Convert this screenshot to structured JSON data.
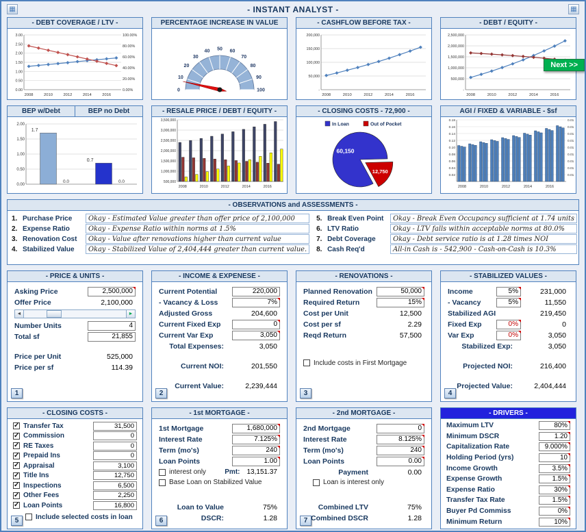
{
  "title": "- INSTANT ANALYST -",
  "next_button": "Next >>",
  "icons": {
    "sheet_left": "▦",
    "sheet_right": "▦",
    "slider_left": "◄",
    "slider_right": "►"
  },
  "charts": {
    "debt_coverage": {
      "title": "- DEBT COVERAGE / LTV -",
      "type": "line",
      "x": [
        2008,
        2009,
        2010,
        2011,
        2012,
        2013,
        2014,
        2015,
        2016,
        2017
      ],
      "x_label_every": 2,
      "left_axis": {
        "min": 0,
        "max": 3,
        "step": 0.5,
        "format": "2dp"
      },
      "right_axis": {
        "min": 0,
        "max": 100,
        "step": 20,
        "format": "pct2"
      },
      "series": [
        {
          "name": "Debt Coverage",
          "axis": "left",
          "color": "#4f81bd",
          "values": [
            1.28,
            1.33,
            1.38,
            1.43,
            1.48,
            1.54,
            1.59,
            1.64,
            1.69,
            1.74
          ]
        },
        {
          "name": "LTV",
          "axis": "right",
          "color": "#c0504d",
          "values": [
            80,
            76,
            72,
            68,
            64,
            60,
            56,
            52,
            48,
            44
          ]
        }
      ]
    },
    "value_gauge": {
      "title": "PERCENTAGE INCREASE IN VALUE",
      "type": "gauge",
      "min": 0,
      "max": 100,
      "tick_step": 10,
      "value": 7
    },
    "cashflow": {
      "title": "- CASHFLOW BEFORE TAX -",
      "type": "line",
      "x": [
        2008,
        2009,
        2010,
        2011,
        2012,
        2013,
        2014,
        2015,
        2016,
        2017
      ],
      "x_label_every": 2,
      "left_axis": {
        "min": 0,
        "max": 200000,
        "step": 50000,
        "format": "comma"
      },
      "series": [
        {
          "name": "Cashflow Before Tax",
          "axis": "left",
          "color": "#4f81bd",
          "values": [
            52000,
            61000,
            71000,
            81000,
            92000,
            103000,
            115000,
            128000,
            141000,
            155000
          ]
        }
      ]
    },
    "debt_equity": {
      "title": "- DEBT / EQUITY -",
      "type": "line",
      "x": [
        2008,
        2009,
        2010,
        2011,
        2012,
        2013,
        2014,
        2015,
        2016,
        2017
      ],
      "x_label_every": 2,
      "left_axis": {
        "min": 0,
        "max": 2500000,
        "step": 500000,
        "format": "comma"
      },
      "series": [
        {
          "name": "Equity",
          "axis": "left",
          "color": "#4f81bd",
          "values": [
            560000,
            700000,
            850000,
            1010000,
            1180000,
            1360000,
            1560000,
            1770000,
            1990000,
            2230000
          ]
        },
        {
          "name": "Debt",
          "axis": "left",
          "color": "#943634",
          "values": [
            1680000,
            1652000,
            1622000,
            1590000,
            1556000,
            1519000,
            1479000,
            1436000,
            1390000,
            1341000
          ]
        }
      ]
    },
    "bep": {
      "type": "bar",
      "titles": [
        "BEP w/Debt",
        "BEP no Debt"
      ],
      "left_axis": {
        "min": 0,
        "max": 2,
        "step": 0.5,
        "format": "2dp"
      },
      "bars": [
        {
          "label": "BEP w/Debt",
          "value": 1.7,
          "zero_label": "0.0",
          "color": "#8caed6"
        },
        {
          "label": "BEP no Debt",
          "value": 0.7,
          "zero_label": "0.0",
          "color": "#2433cc"
        }
      ],
      "value_labels": [
        "1.7",
        "0.7"
      ]
    },
    "resale": {
      "title": "- RESALE PRICE / DEBT / EQUITY -",
      "type": "bar-clustered",
      "x": [
        2008,
        2009,
        2010,
        2011,
        2012,
        2013,
        2014,
        2015,
        2016,
        2017
      ],
      "x_label_every": 2,
      "left_axis": {
        "min": 500000,
        "max": 3500000,
        "step": 500000,
        "format": "comma"
      },
      "series": [
        {
          "name": "Resale Price",
          "color": "#3f4668",
          "values": [
            2400000,
            2496000,
            2596000,
            2700000,
            2808000,
            2920000,
            3037000,
            3158000,
            3285000,
            3416000
          ]
        },
        {
          "name": "Debt",
          "color": "#943634",
          "values": [
            1680000,
            1652000,
            1622000,
            1590000,
            1556000,
            1519000,
            1479000,
            1436000,
            1390000,
            1341000
          ]
        },
        {
          "name": "Equity",
          "color": "#ffff00",
          "values": [
            720000,
            844000,
            974000,
            1110000,
            1252000,
            1401000,
            1558000,
            1722000,
            1895000,
            2075000
          ]
        }
      ]
    },
    "closing_pie": {
      "title": "- CLOSING COSTS - 72,900 -",
      "type": "pie",
      "legend": [
        "In Loan",
        "Out of Pocket"
      ],
      "slices": [
        {
          "name": "In Loan",
          "value": 60150,
          "label": "60,150",
          "color": "#3333cc"
        },
        {
          "name": "Out of Pocket",
          "value": 12750,
          "label": "12,750",
          "color": "#cc0000"
        }
      ]
    },
    "agi": {
      "title": "AGI / FIXED & VARIABLE - $sf",
      "type": "bar",
      "x": [
        2008,
        2009,
        2010,
        2011,
        2012,
        2013,
        2014,
        2015,
        2016,
        2017
      ],
      "x_label_every": 2,
      "left_axis": {
        "min": 0,
        "max": 0.18,
        "step": 0.02,
        "format": "2dp"
      },
      "right_label": "0.01",
      "color": "#4f81bd",
      "values": [
        0.105,
        0.11,
        0.116,
        0.122,
        0.128,
        0.134,
        0.141,
        0.148,
        0.155,
        0.163
      ]
    }
  },
  "observations": {
    "title": "- OBSERVATIONS and ASSESSMENTS -",
    "left": [
      {
        "num": "1.",
        "label": "Purchase Price",
        "comment": "Okay - Estimated Value greater than offer price of 2,100,000"
      },
      {
        "num": "2.",
        "label": "Expense Ratio",
        "comment": "Okay - Expense Ratio within norms at 1.5%"
      },
      {
        "num": "3.",
        "label": "Renovation Cost",
        "comment": "Okay - Value after renovations higher than current value"
      },
      {
        "num": "4.",
        "label": "Stabilized Value",
        "comment": "Okay - Stabilized Value of 2,404,444 greater than current value."
      }
    ],
    "right": [
      {
        "num": "5.",
        "label": "Break Even Point",
        "comment": "Okay - Break Even Occupancy sufficient at 1.74 units"
      },
      {
        "num": "6.",
        "label": "LTV Ratio",
        "comment": "Okay - LTV falls within acceptable norms at 80.0%"
      },
      {
        "num": "7.",
        "label": "Debt Coverage",
        "comment": "Okay - Debt service ratio is at 1.28 times NOI"
      },
      {
        "num": "8.",
        "label": "Cash Req'd",
        "comment": "All-in Cash is - 542,900 - Cash-on-Cash is 10.3%"
      }
    ]
  },
  "price_units": {
    "title": "- PRICE & UNITS -",
    "badge": "1",
    "asking_price_label": "Asking Price",
    "asking_price": "2,500,000",
    "offer_price_label": "Offer Price",
    "offer_price": "2,100,000",
    "number_units_label": "Number Units",
    "number_units": "4",
    "total_sf_label": "Total sf",
    "total_sf": "21,855",
    "price_per_unit_label": "Price per Unit",
    "price_per_unit": "525,000",
    "price_per_sf_label": "Price per sf",
    "price_per_sf": "114.39"
  },
  "income_expense": {
    "title": "- INCOME & EXPENESE -",
    "badge": "2",
    "current_potential_label": "Current Potential",
    "current_potential": "220,000",
    "vacancy_label": " - Vacancy & Loss",
    "vacancy": "7%",
    "adjusted_gross_label": "Adjusted Gross",
    "adjusted_gross": "204,600",
    "fixed_exp_label": "Current Fixed Exp",
    "fixed_exp": "0",
    "var_exp_label": "Current Var Exp",
    "var_exp": "3,050",
    "total_expenses_label": "Total Expenses:",
    "total_expenses": "3,050",
    "current_noi_label": "Current NOI:",
    "current_noi": "201,550",
    "current_value_label": "Current Value:",
    "current_value": "2,239,444"
  },
  "renovations": {
    "title": "- RENOVATIONS -",
    "badge": "3",
    "planned_label": "Planned Renovation",
    "planned": "50,000",
    "required_return_label": "Required Return",
    "required_return": "15%",
    "cost_per_unit_label": "Cost per Unit",
    "cost_per_unit": "12,500",
    "cost_per_sf_label": "Cost per sf",
    "cost_per_sf": "2.29",
    "reqd_return_label": "Reqd Return",
    "reqd_return": "57,500",
    "include_label": "Include costs in First Mortgage"
  },
  "stabilized": {
    "title": "- STABILIZED VALUES -",
    "badge": "4",
    "income_label": "Income",
    "income_pct": "5%",
    "income_amt": "231,000",
    "vacancy_label": " - Vacancy",
    "vacancy_pct": "5%",
    "vacancy_amt": "11,550",
    "agi_label": "Stabilized AGI",
    "agi_amt": "219,450",
    "fixed_label": "Fixed Exp",
    "fixed_pct": "0%",
    "fixed_amt": "0",
    "var_label": "Var Exp",
    "var_pct": "0%",
    "var_amt": "3,050",
    "exp_label": "Stabilized Exp:",
    "exp": "3,050",
    "noi_label": "Projected NOI:",
    "noi": "216,400",
    "value_label": "Projected Value:",
    "value": "2,404,444"
  },
  "closing_costs": {
    "title": "- CLOSING COSTS -",
    "badge": "5",
    "items": [
      {
        "label": "Transfer Tax",
        "value": "31,500",
        "checked": true
      },
      {
        "label": "Commission",
        "value": "0",
        "checked": true
      },
      {
        "label": "RE Taxes",
        "value": "0",
        "checked": true
      },
      {
        "label": "Prepaid Ins",
        "value": "0",
        "checked": true
      },
      {
        "label": "Appraisal",
        "value": "3,100",
        "checked": true
      },
      {
        "label": "Title Ins",
        "value": "12,750",
        "checked": true
      },
      {
        "label": "Inspections",
        "value": "6,500",
        "checked": true
      },
      {
        "label": "Other Fees",
        "value": "2,250",
        "checked": true
      },
      {
        "label": "Loan Points",
        "value": "16,800",
        "checked": true
      }
    ],
    "include_label": "Include selected costs in loan",
    "include_checked": false
  },
  "mortgage1": {
    "title": "- 1st MORTGAGE -",
    "badge": "6",
    "amount_label": "1st Mortgage",
    "amount": "1,680,000",
    "rate_label": "Interest Rate",
    "rate": "7.125%",
    "term_label": "Term (mo's)",
    "term": "240",
    "points_label": "Loan Points",
    "points": "1.00",
    "interest_only_label": "interest only",
    "pmt_label": "Pmt:",
    "pmt": "13,151.37",
    "base_label": "Base Loan on Stabilized Value",
    "ltv_label": "Loan to Value",
    "ltv": "75%",
    "dscr_label": "DSCR:",
    "dscr": "1.28"
  },
  "mortgage2": {
    "title": "- 2nd MORTGAGE -",
    "badge": "7",
    "amount_label": "2nd Mortgage",
    "amount": "0",
    "rate_label": "Interest Rate",
    "rate": "8.125%",
    "term_label": "Term (mo's)",
    "term": "240",
    "points_label": "Loan Points",
    "points": "0.00",
    "payment_label": "Payment",
    "payment": "0.00",
    "interest_only_label": "Loan is interest only",
    "cltv_label": "Combined LTV",
    "cltv": "75%",
    "cdscr_label": "Combined DSCR",
    "cdscr": "1.28"
  },
  "drivers": {
    "title": "- DRIVERS -",
    "items": [
      {
        "label": "Maximum LTV",
        "value": "80%"
      },
      {
        "label": "Minimum DSCR",
        "value": "1.20"
      },
      {
        "label": "Capitalization Rate",
        "value": "9.000%"
      },
      {
        "label": "Holding Period (yrs)",
        "value": "10"
      },
      {
        "label": "Income Growth",
        "value": "3.5%"
      },
      {
        "label": "Expense Growth",
        "value": "1.5%"
      },
      {
        "label": "Expense Ratio",
        "value": "30%"
      },
      {
        "label": "Transfer Tax Rate",
        "value": "1.5%"
      },
      {
        "label": "Buyer Pd Commiss",
        "value": "0%"
      },
      {
        "label": "Minimum Return",
        "value": "10%"
      }
    ]
  }
}
